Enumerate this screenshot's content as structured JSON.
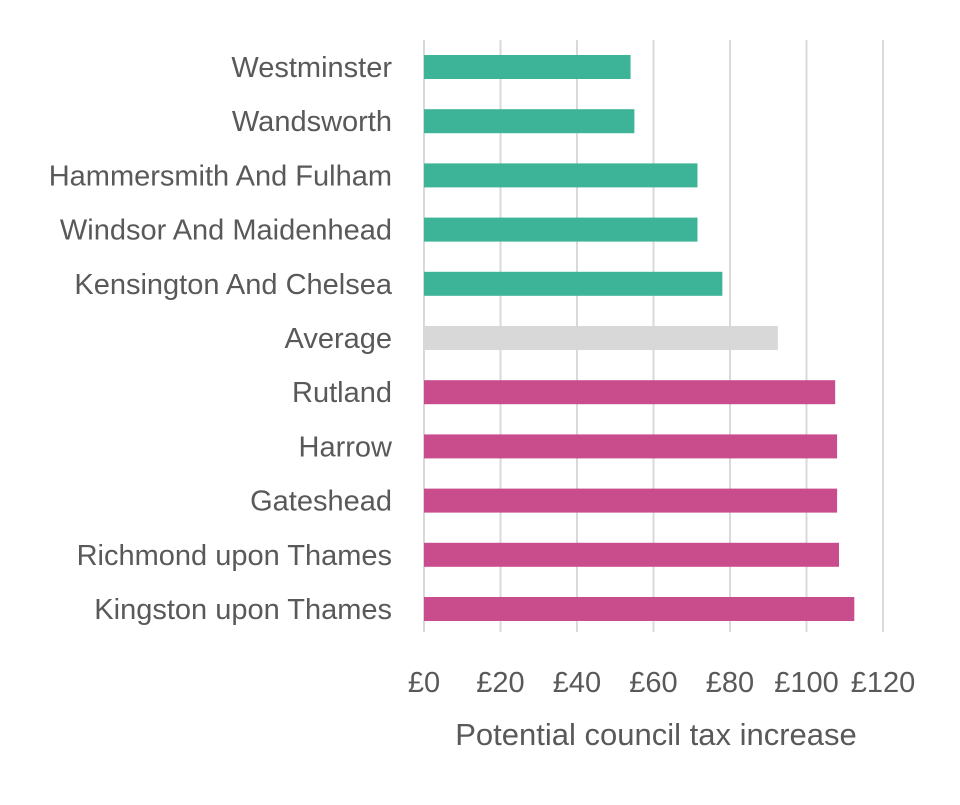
{
  "chart_data": {
    "type": "bar",
    "orientation": "horizontal",
    "xlabel": "Potential council tax increase",
    "ylabel": "",
    "xlim": [
      0,
      120
    ],
    "x_tick_values": [
      0,
      20,
      40,
      60,
      80,
      100,
      120
    ],
    "x_tick_labels": [
      "£0",
      "£20",
      "£40",
      "£60",
      "£80",
      "£100",
      "£120"
    ],
    "grid": "vertical",
    "legend": "none",
    "categories": [
      "Westminster",
      "Wandsworth",
      "Hammersmith And Fulham",
      "Windsor And Maidenhead",
      "Kensington And Chelsea",
      "Average",
      "Rutland",
      "Harrow",
      "Gateshead",
      "Richmond upon Thames",
      "Kingston upon Thames"
    ],
    "values": [
      54,
      55,
      71.5,
      71.5,
      78,
      92.5,
      107.5,
      108,
      108,
      108.5,
      112.5
    ],
    "bar_colors": [
      "#3db497",
      "#3db497",
      "#3db497",
      "#3db497",
      "#3db497",
      "#d8d8d8",
      "#c94d8c",
      "#c94d8c",
      "#c94d8c",
      "#c94d8c",
      "#c94d8c"
    ],
    "colors": {
      "lowest": "#3db497",
      "average": "#d8d8d8",
      "highest": "#c94d8c",
      "gridline": "#d9d9d9",
      "text": "#595959"
    }
  }
}
